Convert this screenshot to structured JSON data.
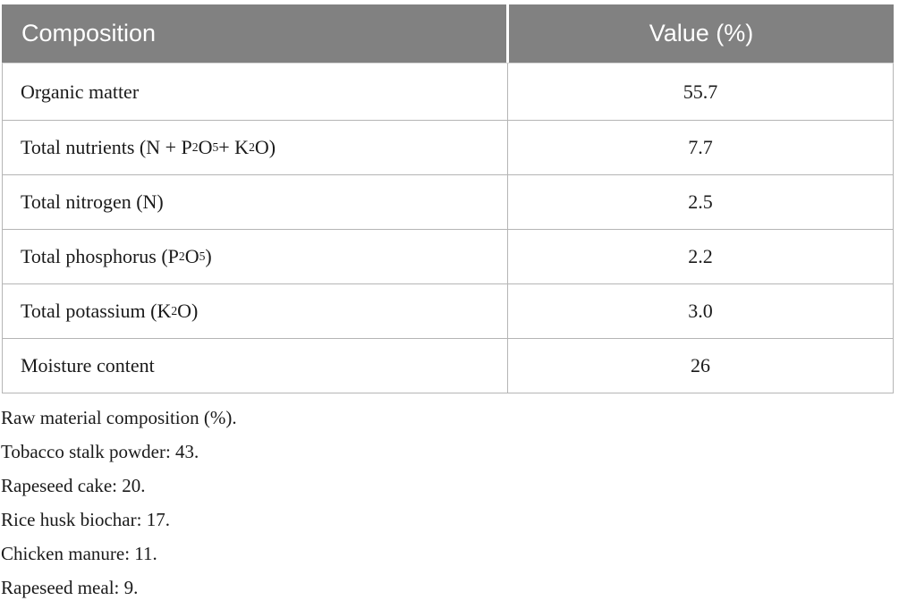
{
  "table": {
    "header": {
      "col1": "Composition",
      "col2": "Value (%)"
    },
    "rows": [
      {
        "label": "Organic matter",
        "value": "55.7"
      },
      {
        "label_parts": [
          "Total nutrients (N + P",
          "2",
          "O",
          "5",
          " + K",
          "2",
          "O)"
        ],
        "value": "7.7"
      },
      {
        "label": "Total nitrogen (N)",
        "value": "2.5"
      },
      {
        "label_parts": [
          "Total phosphorus (P",
          "2",
          "O",
          "5",
          ")"
        ],
        "value": "2.2"
      },
      {
        "label_parts": [
          "Total potassium (K",
          "2",
          "O)"
        ],
        "value": "3.0"
      },
      {
        "label": "Moisture content",
        "value": "26"
      }
    ]
  },
  "footnotes": {
    "lines": [
      "Raw material composition (%).",
      "Tobacco stalk powder: 43.",
      "Rapeseed cake: 20.",
      "Rice husk biochar: 17.",
      "Chicken manure: 11.",
      "Rapeseed meal: 9."
    ]
  },
  "colors": {
    "header_bg": "#818181",
    "header_text": "#ffffff",
    "border": "#b5b5b5",
    "body_text": "#1a1a1a",
    "page_bg": "#ffffff"
  }
}
